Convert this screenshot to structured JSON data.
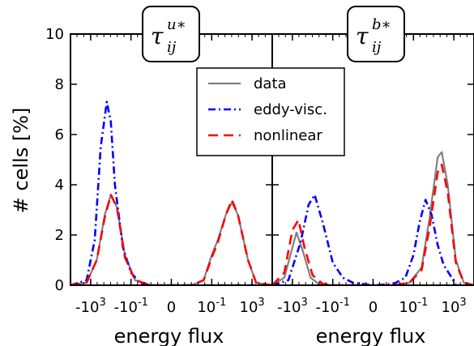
{
  "chart_data": {
    "type": "line",
    "ylabel": "# cells [%]",
    "ylim": [
      0,
      10
    ],
    "y_ticks": [
      "0",
      "2",
      "4",
      "6",
      "8",
      "10"
    ],
    "x_ticks": [
      {
        "base": "-10",
        "exp": "3"
      },
      {
        "base": "-10",
        "exp": "-1"
      },
      {
        "base": "0",
        "exp": ""
      },
      {
        "base": "10",
        "exp": "-1"
      },
      {
        "base": "10",
        "exp": "3"
      }
    ],
    "legend": [
      {
        "name": "data",
        "color": "#808080",
        "style": "solid"
      },
      {
        "name": "eddy-visc.",
        "color": "#0000ff",
        "style": "dashdot"
      },
      {
        "name": "nonlinear",
        "color": "#ff0000",
        "style": "dashed"
      }
    ],
    "panels": [
      {
        "title_symbol": "τ",
        "title_sup": "u∗",
        "title_sub": "ij",
        "xlabel": "energy flux",
        "series": [
          {
            "name": "data",
            "points": [
              [
                -5,
                0
              ],
              [
                -4.2,
                0.1
              ],
              [
                -3.7,
                1
              ],
              [
                -3.3,
                2.8
              ],
              [
                -3.0,
                3.6
              ],
              [
                -2.7,
                3.1
              ],
              [
                -2.3,
                1.2
              ],
              [
                -1.8,
                0.2
              ],
              [
                -1,
                0
              ],
              [
                0,
                0
              ],
              [
                1,
                0
              ],
              [
                1.6,
                0.2
              ],
              [
                2.0,
                1.2
              ],
              [
                2.3,
                1.8
              ],
              [
                2.7,
                2.8
              ],
              [
                3.0,
                3.3
              ],
              [
                3.3,
                2.8
              ],
              [
                3.8,
                1.0
              ],
              [
                4.2,
                0.1
              ],
              [
                5,
                0
              ]
            ]
          },
          {
            "name": "eddy-visc.",
            "points": [
              [
                -5,
                0
              ],
              [
                -4.2,
                0.2
              ],
              [
                -3.8,
                1.8
              ],
              [
                -3.5,
                5.5
              ],
              [
                -3.2,
                7.3
              ],
              [
                -3.0,
                6.5
              ],
              [
                -2.8,
                4.0
              ],
              [
                -2.4,
                1.5
              ],
              [
                -2.0,
                0.5
              ],
              [
                -1.5,
                0.05
              ],
              [
                -1,
                0
              ],
              [
                5,
                0
              ]
            ]
          },
          {
            "name": "nonlinear",
            "points": [
              [
                -5,
                0
              ],
              [
                -4.2,
                0.1
              ],
              [
                -3.7,
                1
              ],
              [
                -3.3,
                2.7
              ],
              [
                -3.0,
                3.6
              ],
              [
                -2.7,
                3.1
              ],
              [
                -2.3,
                1.1
              ],
              [
                -1.8,
                0.2
              ],
              [
                -1,
                0
              ],
              [
                0,
                0
              ],
              [
                1,
                0
              ],
              [
                1.6,
                0.2
              ],
              [
                2.0,
                1.1
              ],
              [
                2.3,
                1.7
              ],
              [
                2.7,
                2.8
              ],
              [
                3.0,
                3.4
              ],
              [
                3.3,
                2.8
              ],
              [
                3.8,
                1.0
              ],
              [
                4.2,
                0.1
              ],
              [
                5,
                0
              ]
            ]
          }
        ]
      },
      {
        "title_symbol": "τ",
        "title_sup": "b∗",
        "title_sub": "ij",
        "xlabel": "energy flux",
        "series": [
          {
            "name": "data",
            "points": [
              [
                -5,
                0
              ],
              [
                -4.4,
                0.3
              ],
              [
                -4.0,
                1.5
              ],
              [
                -3.8,
                2.1
              ],
              [
                -3.5,
                1.4
              ],
              [
                -3.1,
                0.3
              ],
              [
                -2.7,
                0.05
              ],
              [
                -2,
                0
              ],
              [
                0,
                0
              ],
              [
                1,
                0
              ],
              [
                1.8,
                0.1
              ],
              [
                2.4,
                0.7
              ],
              [
                2.8,
                2.7
              ],
              [
                3.2,
                5.1
              ],
              [
                3.4,
                5.3
              ],
              [
                3.7,
                4.0
              ],
              [
                4.1,
                1.0
              ],
              [
                4.5,
                0.1
              ],
              [
                5,
                0
              ]
            ]
          },
          {
            "name": "eddy-visc.",
            "points": [
              [
                -5,
                0
              ],
              [
                -4.2,
                0.2
              ],
              [
                -3.6,
                1.7
              ],
              [
                -3.2,
                3.2
              ],
              [
                -2.9,
                3.6
              ],
              [
                -2.5,
                2.5
              ],
              [
                -2.0,
                0.9
              ],
              [
                -1.5,
                0.3
              ],
              [
                -1,
                0.1
              ],
              [
                0,
                0
              ],
              [
                1,
                0.05
              ],
              [
                1.6,
                0.3
              ],
              [
                2.0,
                1.2
              ],
              [
                2.3,
                2.5
              ],
              [
                2.6,
                3.4
              ],
              [
                2.9,
                2.8
              ],
              [
                3.2,
                1.6
              ],
              [
                3.5,
                0.8
              ],
              [
                3.9,
                0.3
              ],
              [
                4.1,
                0
              ],
              [
                5,
                0
              ]
            ]
          },
          {
            "name": "nonlinear",
            "points": [
              [
                -5,
                0
              ],
              [
                -4.4,
                0.5
              ],
              [
                -4.0,
                2.2
              ],
              [
                -3.7,
                2.6
              ],
              [
                -3.4,
                1.5
              ],
              [
                -3.0,
                0.4
              ],
              [
                -2.5,
                0.05
              ],
              [
                -2,
                0
              ],
              [
                0,
                0
              ],
              [
                1,
                0
              ],
              [
                1.8,
                0.1
              ],
              [
                2.4,
                0.6
              ],
              [
                2.8,
                2.3
              ],
              [
                3.2,
                4.5
              ],
              [
                3.4,
                4.8
              ],
              [
                3.7,
                3.7
              ],
              [
                4.1,
                0.9
              ],
              [
                4.5,
                0.1
              ],
              [
                5,
                0
              ]
            ]
          }
        ]
      }
    ]
  }
}
